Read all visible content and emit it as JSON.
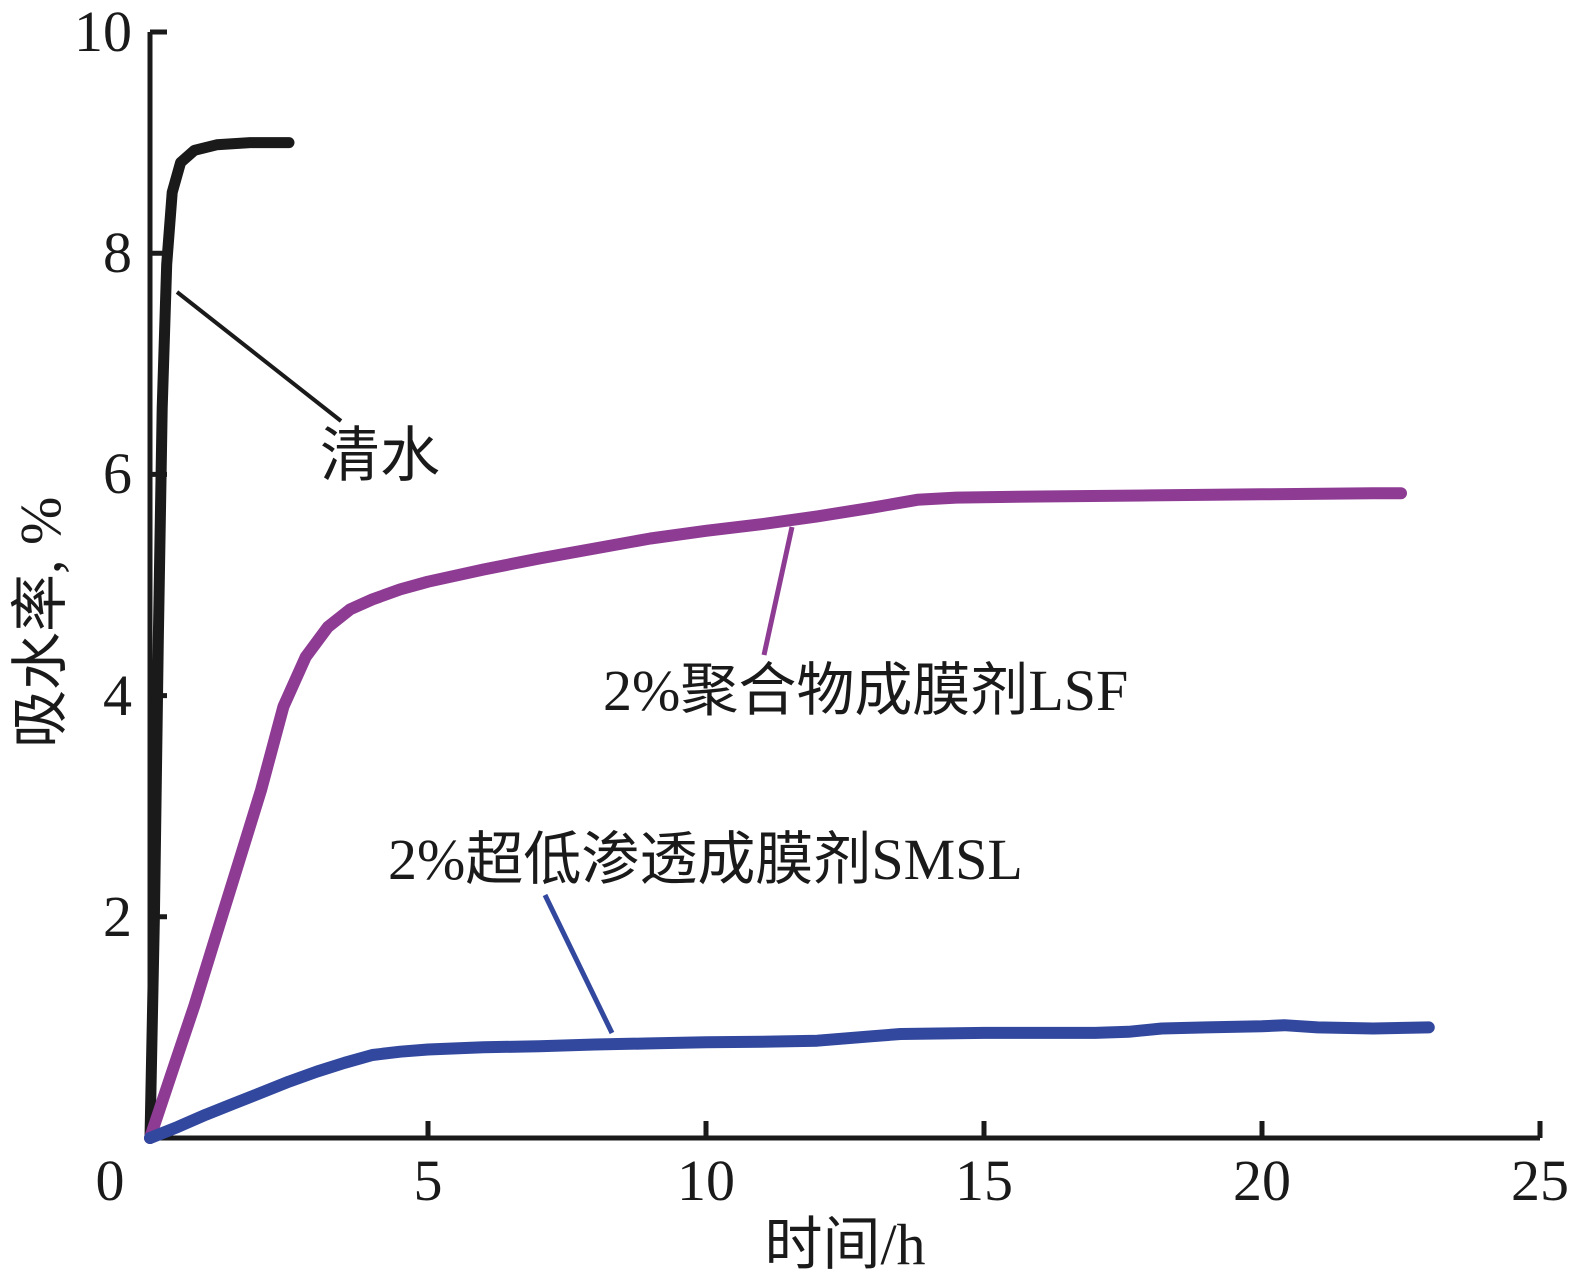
{
  "chart_data": {
    "type": "line",
    "title": "",
    "xlabel": "时间/h",
    "ylabel": "吸水率, %",
    "xlim": [
      0,
      25
    ],
    "ylim": [
      0,
      10
    ],
    "xticks": [
      0,
      5,
      10,
      15,
      20,
      25
    ],
    "yticks": [
      2,
      4,
      6,
      8,
      10
    ],
    "grid": false,
    "legend": "none (inline text annotations with leader lines)",
    "axis_color": "#1a1a1a",
    "series": [
      {
        "name": "清水",
        "color": "#1a1a1a",
        "line_width": 11,
        "x": [
          0,
          0.08,
          0.15,
          0.22,
          0.3,
          0.4,
          0.55,
          0.8,
          1.2,
          1.8,
          2.5
        ],
        "y": [
          0,
          2.0,
          4.5,
          6.6,
          7.9,
          8.55,
          8.82,
          8.93,
          8.98,
          9.0,
          9.0
        ]
      },
      {
        "name": "2%聚合物成膜剂LSF",
        "color": "#8e3b94",
        "line_width": 12,
        "x": [
          0,
          0.4,
          0.8,
          1.2,
          1.6,
          2.0,
          2.4,
          2.8,
          3.2,
          3.6,
          4.0,
          4.5,
          5.0,
          6.0,
          7.0,
          8.0,
          9.0,
          10.0,
          11.0,
          12.0,
          13.0,
          13.8,
          14.5,
          16.0,
          18.0,
          20.0,
          22.0,
          22.5
        ],
        "y": [
          0,
          0.6,
          1.2,
          1.85,
          2.5,
          3.15,
          3.9,
          4.35,
          4.62,
          4.78,
          4.87,
          4.96,
          5.03,
          5.14,
          5.24,
          5.33,
          5.42,
          5.49,
          5.55,
          5.62,
          5.7,
          5.77,
          5.79,
          5.8,
          5.81,
          5.82,
          5.83,
          5.83
        ]
      },
      {
        "name": "2%超低渗透成膜剂SMSL",
        "color": "#32489e",
        "line_width": 12,
        "x": [
          0,
          0.5,
          1.0,
          1.5,
          2.0,
          2.5,
          3.0,
          3.5,
          4.0,
          4.5,
          5.0,
          6.0,
          7.0,
          8.0,
          9.0,
          10.0,
          11.0,
          12.0,
          13.0,
          13.5,
          15.0,
          17.0,
          17.6,
          18.2,
          19.0,
          20.0,
          20.4,
          21.0,
          22.0,
          23.0
        ],
        "y": [
          0,
          0.1,
          0.21,
          0.31,
          0.41,
          0.51,
          0.6,
          0.68,
          0.75,
          0.78,
          0.8,
          0.82,
          0.83,
          0.845,
          0.855,
          0.865,
          0.87,
          0.88,
          0.92,
          0.94,
          0.95,
          0.95,
          0.96,
          0.99,
          1.0,
          1.01,
          1.02,
          1.0,
          0.99,
          1.0
        ]
      }
    ],
    "annotations": [
      {
        "text": "清水",
        "series": "清水"
      },
      {
        "text": "2%聚合物成膜剂LSF",
        "series": "2%聚合物成膜剂LSF"
      },
      {
        "text": "2%超低渗透成膜剂SMSL",
        "series": "2%超低渗透成膜剂SMSL"
      }
    ]
  },
  "axis_titles": {
    "x": "时间/h",
    "y": "吸水率, %"
  }
}
